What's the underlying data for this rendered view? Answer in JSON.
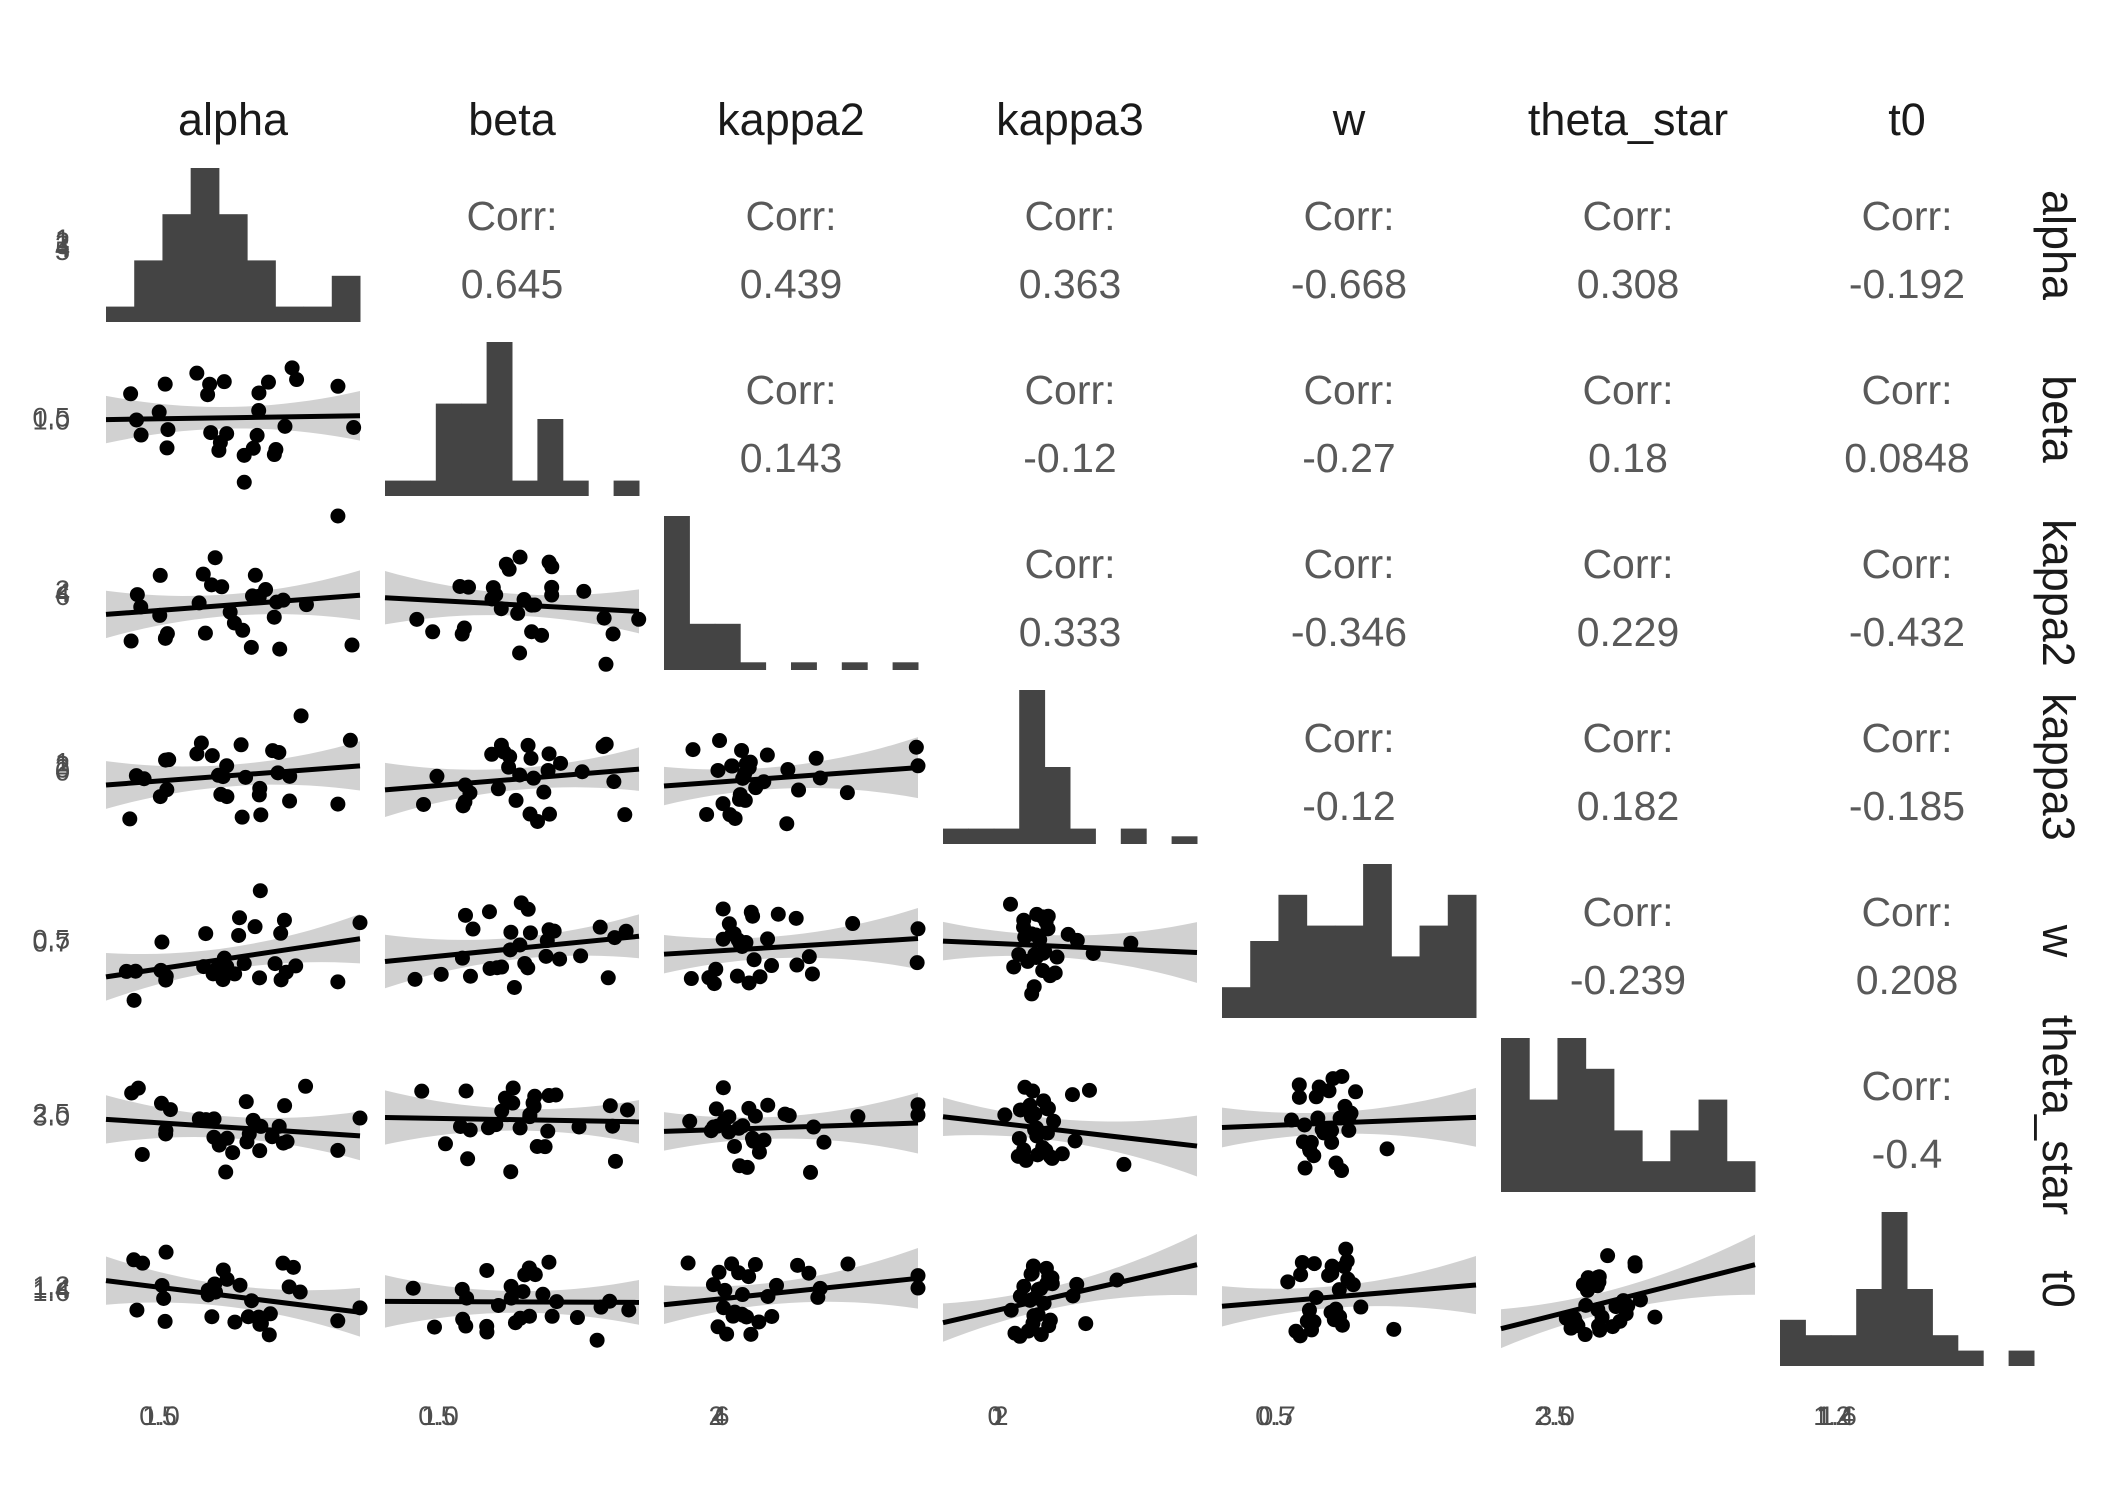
{
  "chart_data": {
    "type": "scatter",
    "variables": [
      "alpha",
      "beta",
      "kappa2",
      "kappa3",
      "w",
      "theta_star",
      "t0"
    ],
    "upper_panels": {
      "label": "Corr:",
      "correlations": [
        {
          "row": "alpha",
          "col": "beta",
          "value": "0.645"
        },
        {
          "row": "alpha",
          "col": "kappa2",
          "value": "0.439"
        },
        {
          "row": "alpha",
          "col": "kappa3",
          "value": "0.363"
        },
        {
          "row": "alpha",
          "col": "w",
          "value": "-0.668"
        },
        {
          "row": "alpha",
          "col": "theta_star",
          "value": "0.308"
        },
        {
          "row": "alpha",
          "col": "t0",
          "value": "-0.192"
        },
        {
          "row": "beta",
          "col": "kappa2",
          "value": "0.143"
        },
        {
          "row": "beta",
          "col": "kappa3",
          "value": "-0.12"
        },
        {
          "row": "beta",
          "col": "w",
          "value": "-0.27"
        },
        {
          "row": "beta",
          "col": "theta_star",
          "value": "0.18"
        },
        {
          "row": "beta",
          "col": "t0",
          "value": "0.0848"
        },
        {
          "row": "kappa2",
          "col": "kappa3",
          "value": "0.333"
        },
        {
          "row": "kappa2",
          "col": "w",
          "value": "-0.346"
        },
        {
          "row": "kappa2",
          "col": "theta_star",
          "value": "0.229"
        },
        {
          "row": "kappa2",
          "col": "t0",
          "value": "-0.432"
        },
        {
          "row": "kappa3",
          "col": "w",
          "value": "-0.12"
        },
        {
          "row": "kappa3",
          "col": "theta_star",
          "value": "0.182"
        },
        {
          "row": "kappa3",
          "col": "t0",
          "value": "-0.185"
        },
        {
          "row": "w",
          "col": "theta_star",
          "value": "-0.239"
        },
        {
          "row": "w",
          "col": "t0",
          "value": "0.208"
        },
        {
          "row": "theta_star",
          "col": "t0",
          "value": "-0.4"
        }
      ]
    },
    "diagonal_histograms": [
      {
        "variable": "alpha",
        "bin_heights": [
          1,
          4,
          7,
          10,
          7,
          4,
          1,
          1,
          3
        ]
      },
      {
        "variable": "beta",
        "bin_heights": [
          1,
          1,
          6,
          6,
          10,
          1,
          5,
          1,
          0,
          1
        ]
      },
      {
        "variable": "kappa2",
        "bin_heights": [
          10,
          3,
          3,
          0.5,
          0,
          0.5,
          0,
          0.5,
          0,
          0.5
        ]
      },
      {
        "variable": "kappa3",
        "bin_heights": [
          1,
          1,
          1,
          10,
          5,
          1,
          0,
          1,
          0,
          0.5
        ]
      },
      {
        "variable": "w",
        "bin_heights": [
          2,
          5,
          8,
          6,
          6,
          10,
          4,
          6,
          8
        ]
      },
      {
        "variable": "theta_star",
        "bin_heights": [
          10,
          6,
          10,
          8,
          4,
          2,
          4,
          6,
          2
        ]
      },
      {
        "variable": "t0",
        "bin_heights": [
          3,
          2,
          2,
          5,
          10,
          5,
          2,
          1,
          0,
          1
        ]
      }
    ],
    "x_tick_labels": [
      [
        "0.5",
        "1.0"
      ],
      [
        "0.5",
        "1.0"
      ],
      [
        "2",
        "4",
        "6"
      ],
      [
        "0",
        "1",
        "2"
      ],
      [
        "0.5",
        "0.7"
      ],
      [
        "2.5",
        "3.0"
      ],
      [
        "1.2",
        "1.4",
        "1.6"
      ]
    ],
    "y_tick_labels": [
      [
        "1",
        "2",
        "3",
        "4",
        "5"
      ],
      [
        "0.5",
        "1.0"
      ],
      [
        "2",
        "4",
        "6"
      ],
      [
        "1",
        "2",
        "3",
        "0"
      ],
      [
        "0.5",
        "0.7"
      ],
      [
        "2.5",
        "3.0"
      ],
      [
        "1.2",
        "1.4",
        "1.6"
      ]
    ],
    "lower_panels": {
      "points": [
        [
          0.22,
          0.71,
          0.76,
          0.65,
          0.11,
          0.21,
          0.45,
          0.67,
          0.42,
          0.24,
          0.63,
          0.62,
          0.47,
          0.56,
          0.23,
          0.91,
          0.12,
          0.55,
          0.46,
          0.38,
          0.44,
          0.12,
          0.38,
          0.48,
          0.68,
          0.71,
          0.99,
          0.55,
          0.59
        ],
        [
          0.32,
          0.42,
          0.32,
          0.87,
          0.32,
          0.43,
          0.66,
          0.61,
          0.64,
          0.56,
          0.49,
          0.56,
          0.58,
          0.86,
          0.54,
          0.63,
          0.13,
          0.45,
          0.97,
          0.5,
          0.88,
          0.21,
          0.67,
          0.32,
          0.43,
          0.56,
          0.51,
          0.76,
          0.57
        ],
        [
          0.31,
          0.33,
          0.27,
          0.29,
          0.74,
          0.26,
          0.6,
          0.32,
          0.22,
          0.35,
          0.24,
          0.39,
          0.27,
          0.35,
          0.23,
          0.99,
          0.47,
          0.51,
          0.31,
          0.19,
          0.99,
          0.6,
          0.32,
          0.42,
          0.11,
          0.21,
          0.55,
          0.37,
          0.27
        ],
        [
          0.3,
          0.26,
          0.28,
          0.36,
          0.46,
          0.34,
          0.59,
          0.36,
          0.5,
          0.43,
          0.4,
          0.41,
          0.4,
          0.32,
          0.34,
          0.38,
          0.35,
          0.71,
          0.42,
          0.34,
          0.38,
          0.5,
          0.37,
          0.4,
          0.43,
          0.38,
          0.36,
          0.34,
          0.41
        ],
        [
          0.36,
          0.44,
          0.48,
          0.4,
          0.53,
          0.45,
          0.27,
          0.34,
          0.32,
          0.35,
          0.41,
          0.36,
          0.47,
          0.41,
          0.46,
          0.35,
          0.66,
          0.48,
          0.28,
          0.53,
          0.33,
          0.5,
          0.42,
          0.31,
          0.48,
          0.36,
          0.42,
          0.39,
          0.45
        ],
        [
          0.32,
          0.41,
          0.43,
          0.35,
          0.49,
          0.31,
          0.6,
          0.38,
          0.4,
          0.37,
          0.51,
          0.31,
          0.33,
          0.39,
          0.36,
          0.25,
          0.52,
          0.33,
          0.3,
          0.42,
          0.32,
          0.46,
          0.55,
          0.44,
          0.36,
          0.42,
          0.48,
          0.26,
          0.54
        ],
        [
          0.43,
          0.37,
          0.47,
          0.33,
          0.53,
          0.38,
          0.39,
          0.41,
          0.38,
          0.31,
          0.42,
          0.35,
          0.52,
          0.36,
          0.37,
          0.41,
          0.36,
          0.46,
          0.42,
          0.32,
          0.47,
          0.35,
          0.38,
          0.41,
          0.44,
          0.4,
          0.28,
          0.33,
          0.36
        ]
      ]
    }
  }
}
